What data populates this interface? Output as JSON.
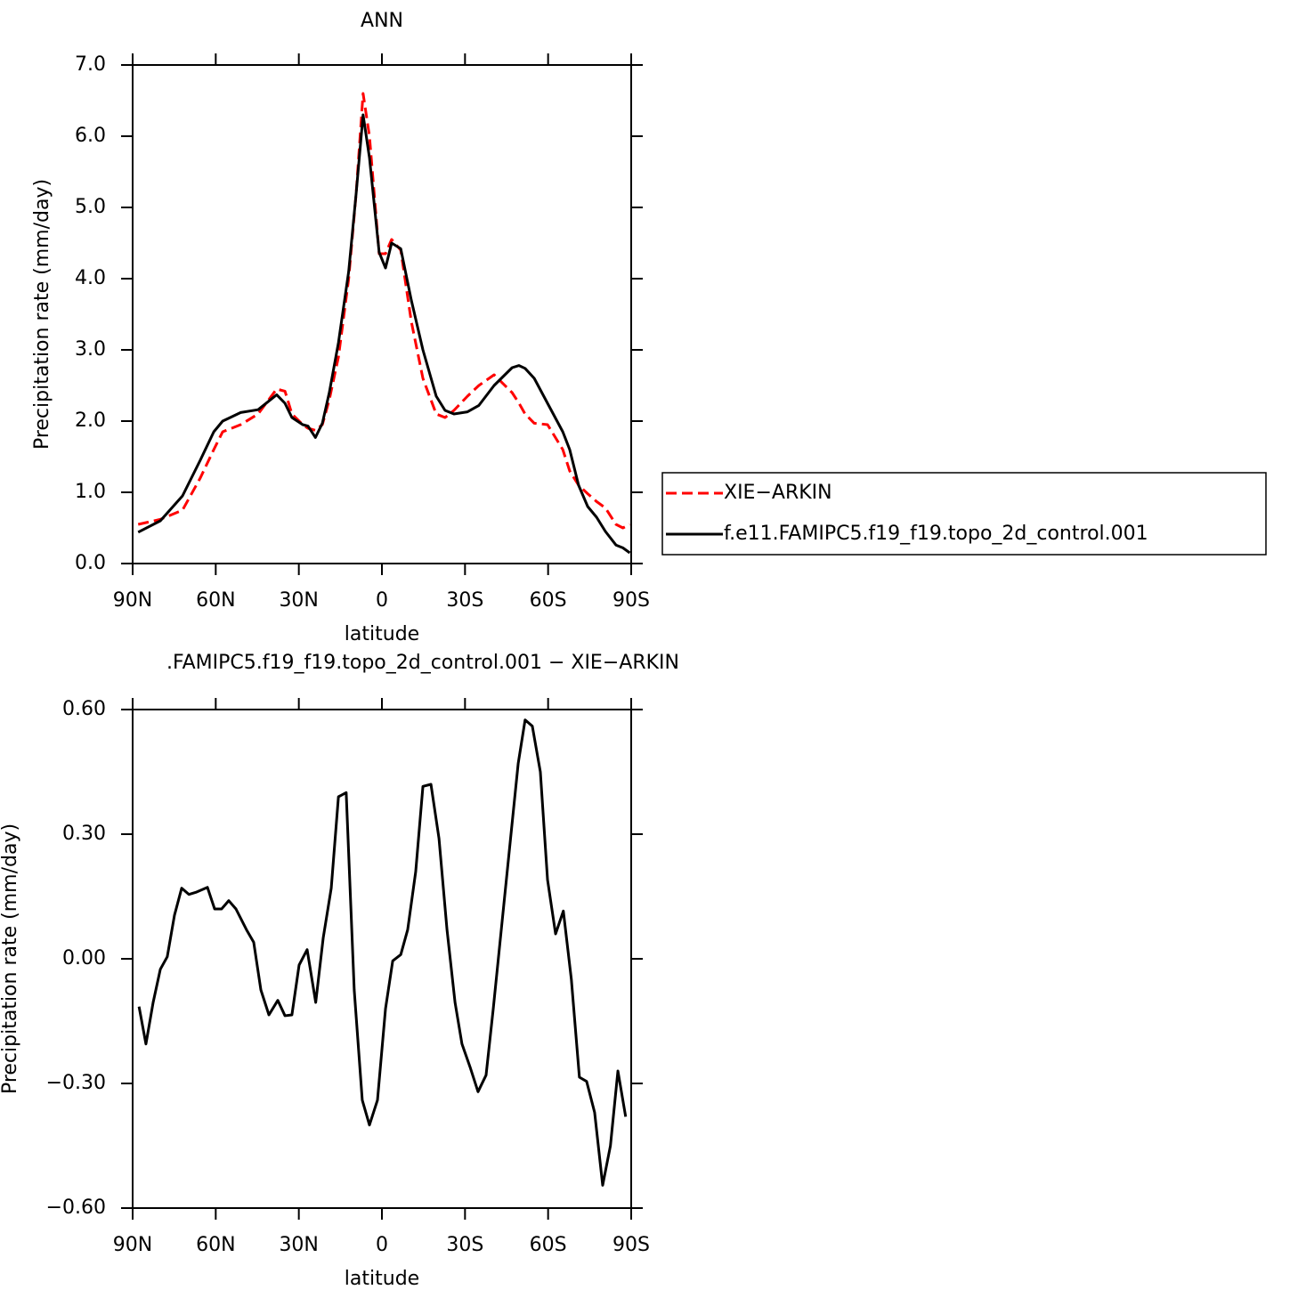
{
  "chart_data": [
    {
      "type": "line",
      "title": "ANN",
      "x_label": "latitude",
      "y_label": "Precipitation rate (mm/day)",
      "x": [
        88,
        80,
        72,
        65.6,
        60.7,
        57.5,
        51,
        44.7,
        38,
        35,
        32.5,
        28.6,
        26.7,
        24,
        21.5,
        19,
        15.7,
        12,
        9.3,
        6.8,
        4.5,
        1,
        -1.3,
        -3.5,
        -6.8,
        -10.6,
        -14.8,
        -19.6,
        -22.8,
        -26,
        -30.9,
        -35,
        -40.5,
        -47,
        -49.5,
        -51.7,
        -55,
        -59.8,
        -65.3,
        -67.8,
        -71,
        -74.3,
        -77.5,
        -80.7,
        -84.5,
        -87,
        -89.5
      ],
      "xlim": [
        90,
        -90
      ],
      "xticks": [
        {
          "value": 90,
          "label": "90N"
        },
        {
          "value": 60,
          "label": "60N"
        },
        {
          "value": 30,
          "label": "30N"
        },
        0,
        {
          "value": -30,
          "label": "30S"
        },
        {
          "value": -60,
          "label": "60S"
        },
        {
          "value": -90,
          "label": "90S"
        }
      ],
      "ylim": [
        0,
        7
      ],
      "yticks": [
        {
          "value": 0,
          "label": "0.0"
        },
        {
          "value": 1,
          "label": "1.0"
        },
        {
          "value": 2,
          "label": "2.0"
        },
        {
          "value": 3,
          "label": "3.0"
        },
        {
          "value": 4,
          "label": "4.0"
        },
        {
          "value": 5,
          "label": "5.0"
        },
        {
          "value": 6,
          "label": "6.0"
        },
        {
          "value": 7,
          "label": "7.0"
        }
      ],
      "legend": "outside-right",
      "series": [
        {
          "name": "XIE−ARKIN",
          "color": "#ff0000",
          "dashed": true,
          "values": [
            0.55,
            0.62,
            0.75,
            1.2,
            1.6,
            1.85,
            1.95,
            2.1,
            2.45,
            2.42,
            2.1,
            1.95,
            1.9,
            1.87,
            1.95,
            2.3,
            2.9,
            4.0,
            5.2,
            6.6,
            6.0,
            4.35,
            4.35,
            4.55,
            4.4,
            3.4,
            2.6,
            2.1,
            2.05,
            2.15,
            2.35,
            2.5,
            2.65,
            2.4,
            2.25,
            2.1,
            1.97,
            1.95,
            1.6,
            1.3,
            1.1,
            0.98,
            0.87,
            0.78,
            0.55,
            0.5,
            0.55
          ]
        },
        {
          "name": "f.e11.FAMIPC5.f19_f19.topo_2d_control.001",
          "color": "#000000",
          "dashed": false,
          "values": [
            0.44,
            0.6,
            0.95,
            1.45,
            1.85,
            2.0,
            2.12,
            2.16,
            2.37,
            2.25,
            2.05,
            1.95,
            1.93,
            1.77,
            1.97,
            2.4,
            3.1,
            4.1,
            5.2,
            6.3,
            5.7,
            4.37,
            4.15,
            4.5,
            4.42,
            3.7,
            3.0,
            2.35,
            2.15,
            2.1,
            2.13,
            2.22,
            2.5,
            2.75,
            2.78,
            2.74,
            2.6,
            2.25,
            1.85,
            1.6,
            1.1,
            0.8,
            0.65,
            0.45,
            0.26,
            0.22,
            0.15
          ]
        }
      ]
    },
    {
      "type": "line",
      "title": ".FAMIPC5.f19_f19.topo_2d_control.001 − XIE−ARKIN",
      "x_label": "latitude",
      "y_label": "Precipitation rate (mm/day)",
      "x": [
        87.7,
        85.2,
        82.6,
        80,
        77.5,
        74.9,
        72.3,
        69.7,
        67.2,
        63,
        60.4,
        57.9,
        55.3,
        52.7,
        48.9,
        46.3,
        43.7,
        40.8,
        37.6,
        35,
        32.5,
        29.9,
        27,
        23.9,
        21.2,
        18.3,
        15.7,
        12.9,
        10,
        7.1,
        4.5,
        1.6,
        -1.3,
        -3.9,
        -6.8,
        -9.3,
        -12.2,
        -14.8,
        -17.7,
        -20.6,
        -23.5,
        -26.4,
        -28.9,
        -31.8,
        -34.7,
        -37.6,
        -40.2,
        -43.4,
        -46.3,
        -49.2,
        -51.7,
        -54.3,
        -57.2,
        -59.8,
        -62.7,
        -65.5,
        -68.4,
        -71.3,
        -73.9,
        -76.8,
        -79.7,
        -82.5,
        -85.2,
        -88
      ],
      "xlim": [
        90,
        -90
      ],
      "xticks": [
        {
          "value": 90,
          "label": "90N"
        },
        {
          "value": 60,
          "label": "60N"
        },
        {
          "value": 30,
          "label": "30N"
        },
        0,
        {
          "value": -30,
          "label": "30S"
        },
        {
          "value": -60,
          "label": "60S"
        },
        {
          "value": -90,
          "label": "90S"
        }
      ],
      "ylim": [
        -0.6,
        0.6
      ],
      "yticks": [
        {
          "value": -0.6,
          "label": "−0.60"
        },
        {
          "value": -0.3,
          "label": "−0.30"
        },
        {
          "value": 0,
          "label": "0.00"
        },
        {
          "value": 0.3,
          "label": "0.30"
        },
        {
          "value": 0.6,
          "label": "0.60"
        }
      ],
      "series": [
        {
          "color": "#000000",
          "dashed": false,
          "values": [
            -0.115,
            -0.205,
            -0.105,
            -0.025,
            0.005,
            0.105,
            0.17,
            0.155,
            0.16,
            0.172,
            0.12,
            0.12,
            0.14,
            0.12,
            0.07,
            0.04,
            -0.075,
            -0.135,
            -0.1,
            -0.137,
            -0.135,
            -0.015,
            0.022,
            -0.105,
            0.05,
            0.17,
            0.39,
            0.4,
            -0.075,
            -0.34,
            -0.4,
            -0.34,
            -0.12,
            -0.005,
            0.01,
            0.07,
            0.21,
            0.415,
            0.42,
            0.29,
            0.07,
            -0.105,
            -0.205,
            -0.26,
            -0.32,
            -0.28,
            -0.12,
            0.09,
            0.28,
            0.47,
            0.575,
            0.56,
            0.45,
            0.19,
            0.06,
            0.115,
            -0.05,
            -0.285,
            -0.295,
            -0.37,
            -0.545,
            -0.45,
            -0.27,
            -0.38
          ]
        }
      ]
    }
  ]
}
